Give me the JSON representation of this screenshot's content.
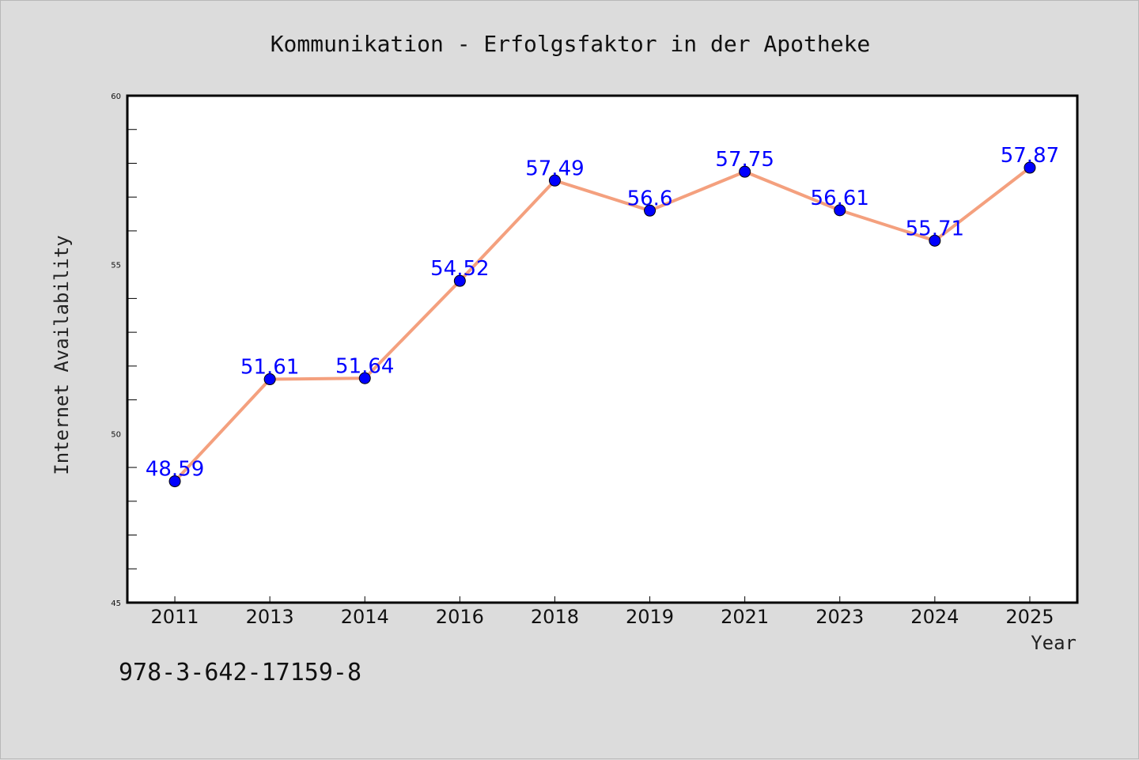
{
  "chart_data": {
    "type": "line",
    "title": "Kommunikation - Erfolgsfaktor in der Apotheke",
    "xlabel": "Year",
    "ylabel": "Internet Availability",
    "categories": [
      "2011",
      "2013",
      "2014",
      "2016",
      "2018",
      "2019",
      "2021",
      "2023",
      "2024",
      "2025"
    ],
    "values": [
      48.59,
      51.61,
      51.64,
      54.52,
      57.49,
      56.6,
      57.75,
      56.61,
      55.71,
      57.87
    ],
    "data_labels": [
      "48.59",
      "51.61",
      "51.64",
      "54.52",
      "57.49",
      "56.6",
      "57.75",
      "56.61",
      "55.71",
      "57.87"
    ],
    "ylim": [
      45,
      60
    ],
    "y_ticks": [
      45,
      50,
      55,
      60
    ],
    "grid": false,
    "colors": {
      "line": "#f4a07e",
      "marker": "#0000ff",
      "label": "#0000ff",
      "plot_background": "#ffffff",
      "figure_background": "#dcdcdc"
    }
  },
  "footer_code": "978-3-642-17159-8"
}
